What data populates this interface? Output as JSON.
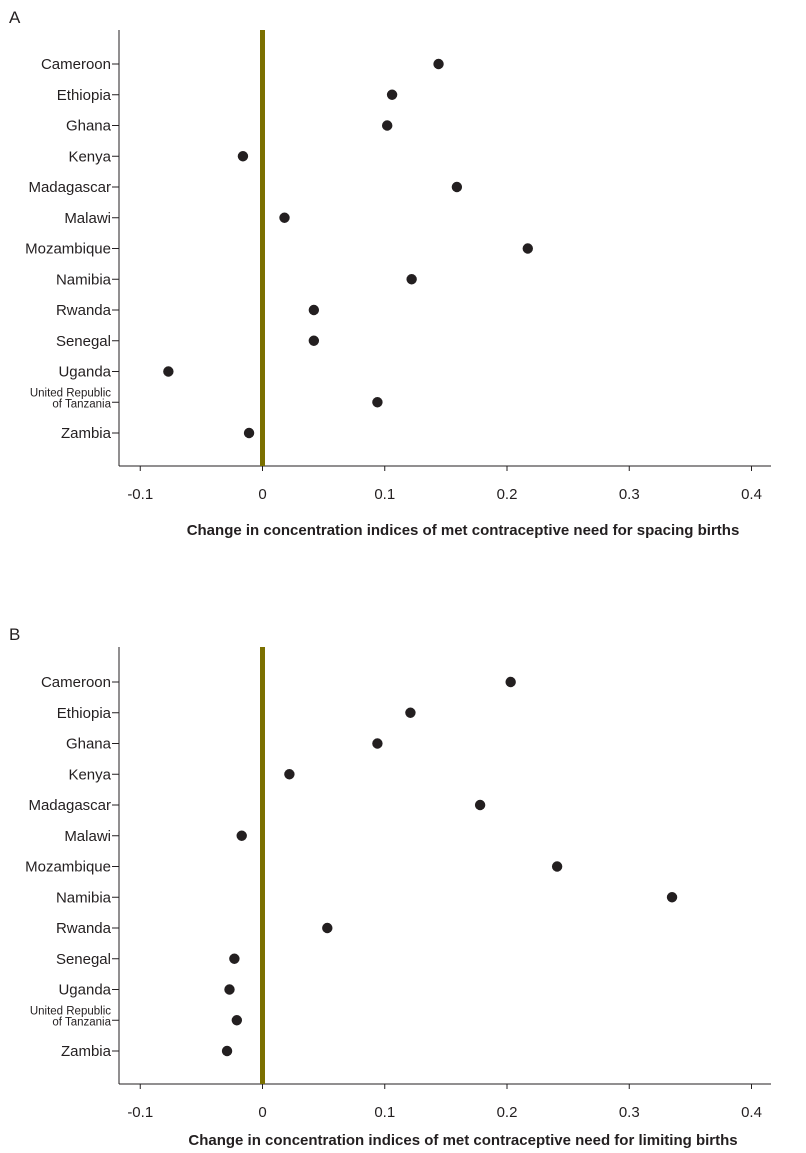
{
  "chart_data": [
    {
      "type": "scatter",
      "panel": "A",
      "title": "",
      "xlabel": "Change in concentration indices of met contraceptive need for spacing births",
      "ylabel": "",
      "xlim": [
        -0.117,
        0.415
      ],
      "xticks": [
        "-0.1",
        "0",
        "0.1",
        "0.2",
        "0.3",
        "0.4"
      ],
      "xtick_values": [
        -0.1,
        0,
        0.1,
        0.2,
        0.3,
        0.4
      ],
      "reference_line": 0,
      "reference_line_color": "#7b7000",
      "marker_color": "#231f20",
      "categories": [
        [
          "Cameroon"
        ],
        [
          "Ethiopia"
        ],
        [
          "Ghana"
        ],
        [
          "Kenya"
        ],
        [
          "Madagascar"
        ],
        [
          "Malawi"
        ],
        [
          "Mozambique"
        ],
        [
          "Namibia"
        ],
        [
          "Rwanda"
        ],
        [
          "Senegal"
        ],
        [
          "Uganda"
        ],
        [
          "United Republic",
          "of Tanzania"
        ],
        [
          "Zambia"
        ]
      ],
      "values": [
        0.144,
        0.106,
        0.102,
        -0.016,
        0.159,
        0.018,
        0.217,
        0.122,
        0.042,
        0.042,
        -0.077,
        0.094,
        -0.011
      ]
    },
    {
      "type": "scatter",
      "panel": "B",
      "title": "",
      "xlabel": "Change in concentration indices of met contraceptive need for limiting births",
      "ylabel": "",
      "xlim": [
        -0.117,
        0.415
      ],
      "xticks": [
        "-0.1",
        "0",
        "0.1",
        "0.2",
        "0.3",
        "0.4"
      ],
      "xtick_values": [
        -0.1,
        0,
        0.1,
        0.2,
        0.3,
        0.4
      ],
      "reference_line": 0,
      "reference_line_color": "#7b7000",
      "marker_color": "#231f20",
      "categories": [
        [
          "Cameroon"
        ],
        [
          "Ethiopia"
        ],
        [
          "Ghana"
        ],
        [
          "Kenya"
        ],
        [
          "Madagascar"
        ],
        [
          "Malawi"
        ],
        [
          "Mozambique"
        ],
        [
          "Namibia"
        ],
        [
          "Rwanda"
        ],
        [
          "Senegal"
        ],
        [
          "Uganda"
        ],
        [
          "United Republic",
          "of Tanzania"
        ],
        [
          "Zambia"
        ]
      ],
      "values": [
        0.203,
        0.121,
        0.094,
        0.022,
        0.178,
        -0.017,
        0.241,
        0.335,
        0.053,
        -0.023,
        -0.027,
        -0.021,
        -0.029
      ]
    }
  ]
}
